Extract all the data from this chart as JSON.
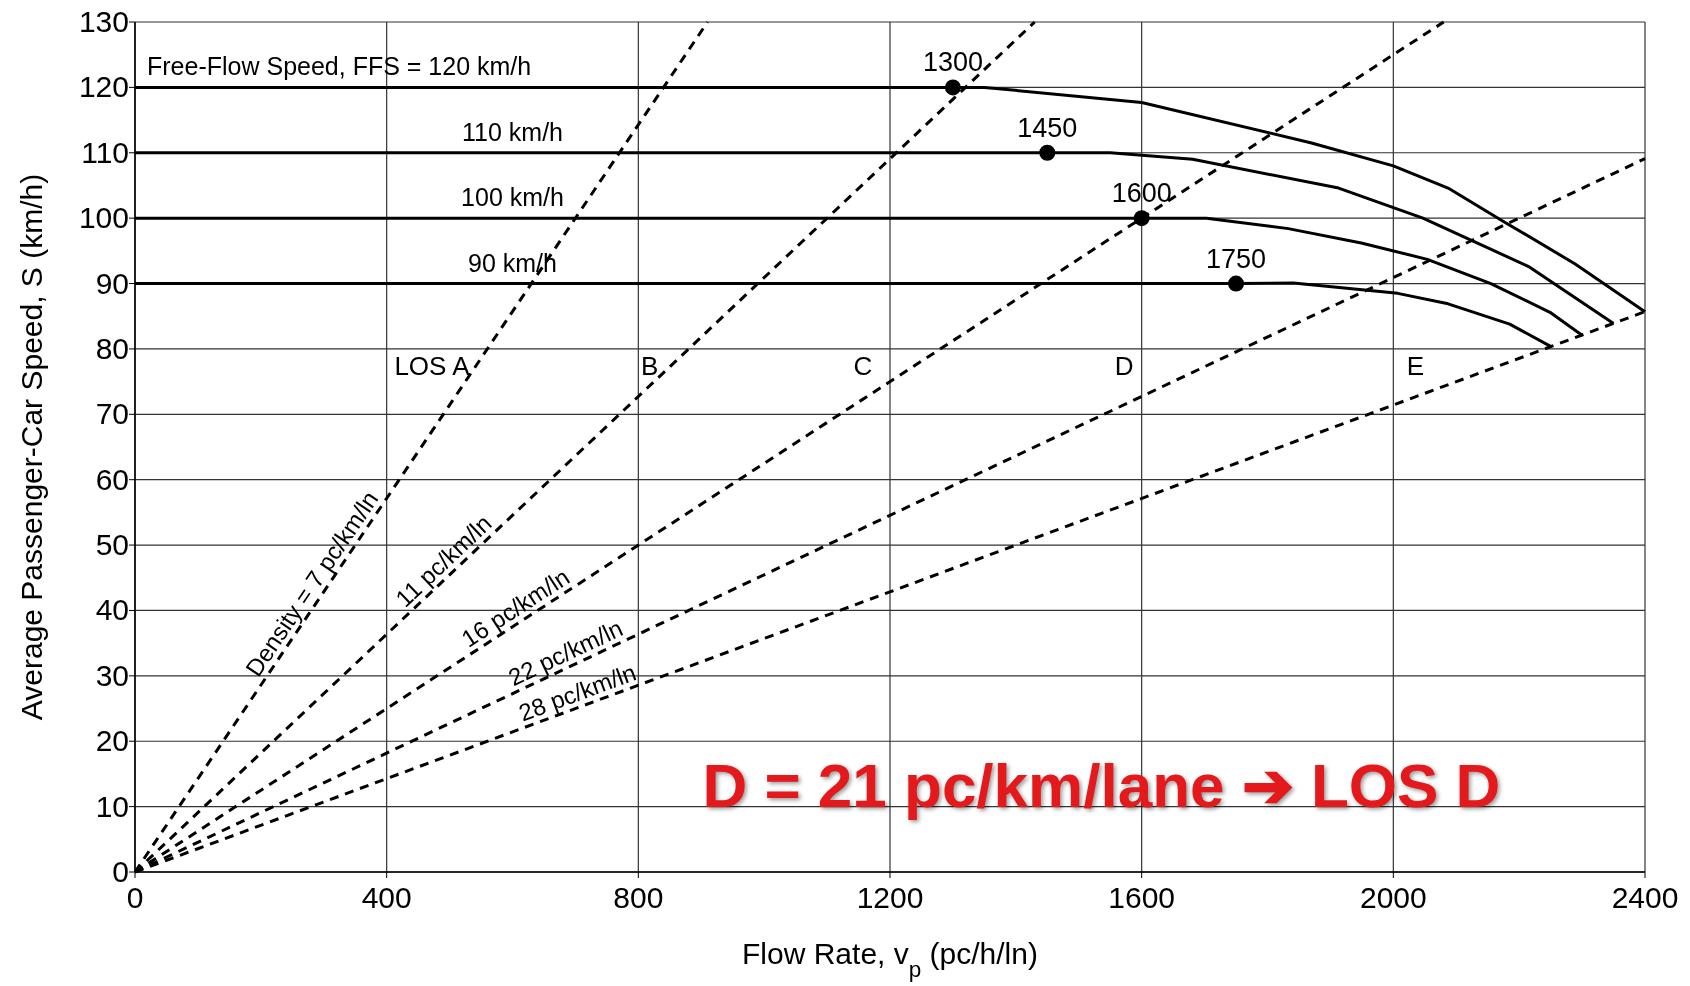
{
  "chart_data": {
    "type": "line",
    "xlabel": "Flow Rate, v$_{p}$ (pc/h/ln)",
    "ylabel": "Average Passenger-Car Speed, S (km/h)",
    "xlim": [
      0,
      2400
    ],
    "ylim": [
      0,
      130
    ],
    "xticks": [
      0,
      400,
      800,
      1200,
      1600,
      2000,
      2400
    ],
    "yticks": [
      0,
      10,
      20,
      30,
      40,
      50,
      60,
      70,
      80,
      90,
      100,
      110,
      120,
      130
    ],
    "grid": true,
    "series": [
      {
        "name": "Free-Flow Speed, FFS = 120 km/h",
        "color": "#000000",
        "line_style": "solid",
        "x": [
          0,
          1300,
          1350,
          1600,
          1870,
          2000,
          2087,
          2175,
          2289,
          2400
        ],
        "values": [
          120,
          120,
          120,
          117.7,
          111.5,
          108,
          104.6,
          99.5,
          93,
          85.7
        ]
      },
      {
        "name": "110 km/h",
        "color": "#000000",
        "line_style": "solid",
        "x": [
          0,
          1450,
          1550,
          1681,
          1913,
          2047,
          2215,
          2350
        ],
        "values": [
          110,
          110,
          110,
          109,
          104.6,
          100,
          92.6,
          83.9
        ]
      },
      {
        "name": "100 km/h",
        "color": "#000000",
        "line_style": "solid",
        "x": [
          0,
          1600,
          1703,
          1833,
          1949,
          2054,
          2155,
          2249,
          2300
        ],
        "values": [
          100,
          100,
          100,
          98.4,
          96.2,
          93.7,
          90,
          85.6,
          82.1
        ]
      },
      {
        "name": "90 km/h",
        "color": "#000000",
        "line_style": "solid",
        "x": [
          0,
          1750,
          1841,
          2007,
          2087,
          2185,
          2250
        ],
        "values": [
          90,
          90,
          90.1,
          88.5,
          86.9,
          83.8,
          80.4
        ]
      },
      {
        "name": "Density = 7 pc/km/ln",
        "color": "#000000",
        "line_style": "dashed",
        "x": [
          0,
          910
        ],
        "values": [
          0,
          130
        ]
      },
      {
        "name": "11 pc/km/ln",
        "color": "#000000",
        "line_style": "dashed",
        "x": [
          0,
          1430
        ],
        "values": [
          0,
          130
        ]
      },
      {
        "name": "16 pc/km/ln",
        "color": "#000000",
        "line_style": "dashed",
        "x": [
          0,
          2080
        ],
        "values": [
          0,
          130
        ]
      },
      {
        "name": "22 pc/km/ln",
        "color": "#000000",
        "line_style": "dashed",
        "x": [
          0,
          2400
        ],
        "values": [
          0,
          109.1
        ]
      },
      {
        "name": "28 pc/km/ln",
        "color": "#000000",
        "line_style": "dashed",
        "x": [
          0,
          2400
        ],
        "values": [
          0,
          85.7
        ]
      },
      {
        "type": "scatter",
        "color": "#000000",
        "marker": "circle",
        "x": [
          1300,
          1450,
          1600,
          1750
        ],
        "values": [
          120,
          110,
          100,
          90
        ]
      }
    ],
    "annotations": [
      {
        "text": "1300",
        "x": 1300,
        "y": 120
      },
      {
        "text": "1450",
        "x": 1450,
        "y": 110
      },
      {
        "text": "1600",
        "x": 1600,
        "y": 100
      },
      {
        "text": "1750",
        "x": 1750,
        "y": 90
      },
      "LOS A",
      "B",
      "C",
      "D",
      "E",
      "D = 21 pc/km/lane ➔ LOS D"
    ]
  }
}
